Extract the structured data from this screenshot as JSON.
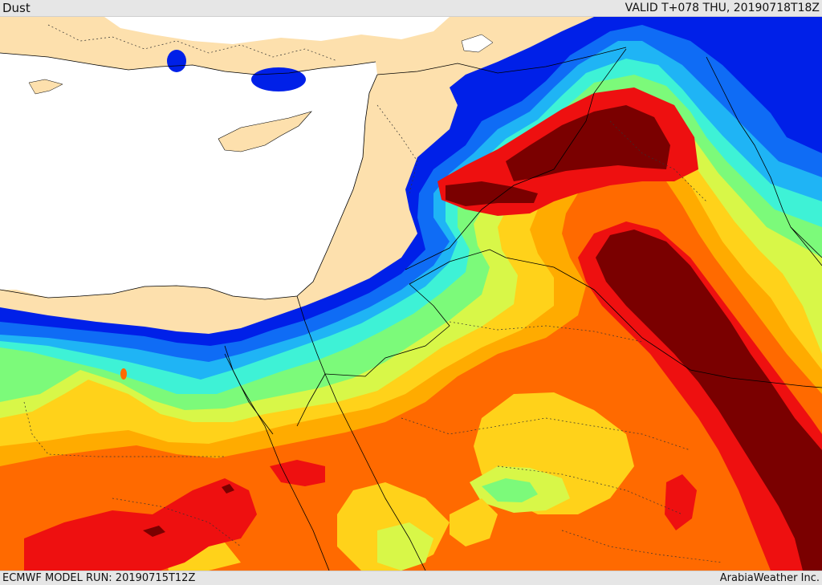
{
  "header": {
    "title": "Dust",
    "valid_time": "VALID T+078 THU, 20190718T18Z"
  },
  "footer": {
    "model_run": "ECMWF MODEL RUN: 20190715T12Z",
    "credit": "ArabiaWeather Inc."
  },
  "map": {
    "field": "dust",
    "colors": {
      "land": "#fde0ad",
      "sea": "#ffffff",
      "level_1": "#0020e8",
      "level_2": "#0f6cf5",
      "level_3": "#1fb4f5",
      "level_4": "#3ef2d6",
      "level_5": "#7cfa7a",
      "level_6": "#d8f748",
      "level_7": "#ffd21a",
      "level_8": "#ffab00",
      "level_9": "#ff6a00",
      "level_10": "#ee1010",
      "level_11": "#7a0000",
      "border": "#000000"
    }
  }
}
